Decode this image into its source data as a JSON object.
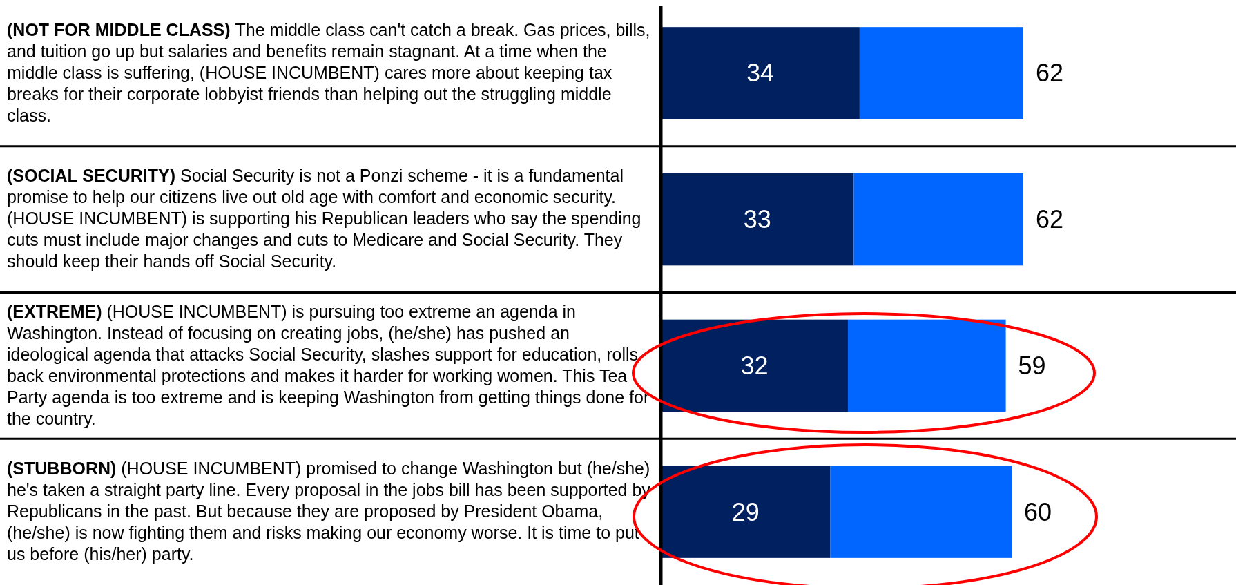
{
  "chart_data": {
    "type": "bar",
    "orientation": "horizontal",
    "stacked": true,
    "categories": [
      "(NOT FOR MIDDLE CLASS) The middle class can't catch a break. Gas prices, bills, and tuition go up but salaries and benefits remain stagnant. At a time when the middle class is suffering, (HOUSE INCUMBENT) cares more about keeping tax breaks for their corporate lobbyist friends than helping out the struggling middle class.",
      "(SOCIAL SECURITY) Social Security is not a Ponzi scheme - it is a fundamental promise to help our citizens live out old age with comfort and economic security. (HOUSE INCUMBENT) is supporting his Republican leaders who say the spending cuts must include major changes and cuts to Medicare and Social Security.  They should keep their hands off Social Security.",
      "(EXTREME) (HOUSE INCUMBENT) is pursuing too extreme an agenda in Washington.  Instead of focusing on creating jobs, (he/she) has pushed an ideological agenda that attacks Social Security, slashes support for education, rolls back environmental protections and makes it harder for working women.  This Tea Party agenda is too extreme and is keeping Washington from getting things done for the country.",
      "(STUBBORN) (HOUSE INCUMBENT) promised to change Washington but (he/she) he's taken a straight party line. Every proposal in the jobs bill has been supported by Republicans in the past.  But because they are proposed by President Obama, (he/she) is now fighting them and risks making our economy worse.  It is time to put us before (his/her) party."
    ],
    "series": [
      {
        "color": "#002060",
        "values": [
          34,
          33,
          32,
          29
        ],
        "value_labels": [
          "34",
          "33",
          "32",
          "29"
        ]
      },
      {
        "color": "#0066ff",
        "values": [
          28,
          29,
          27,
          31
        ]
      }
    ],
    "totals": [
      "62",
      "62",
      "59",
      "60"
    ]
  }
}
